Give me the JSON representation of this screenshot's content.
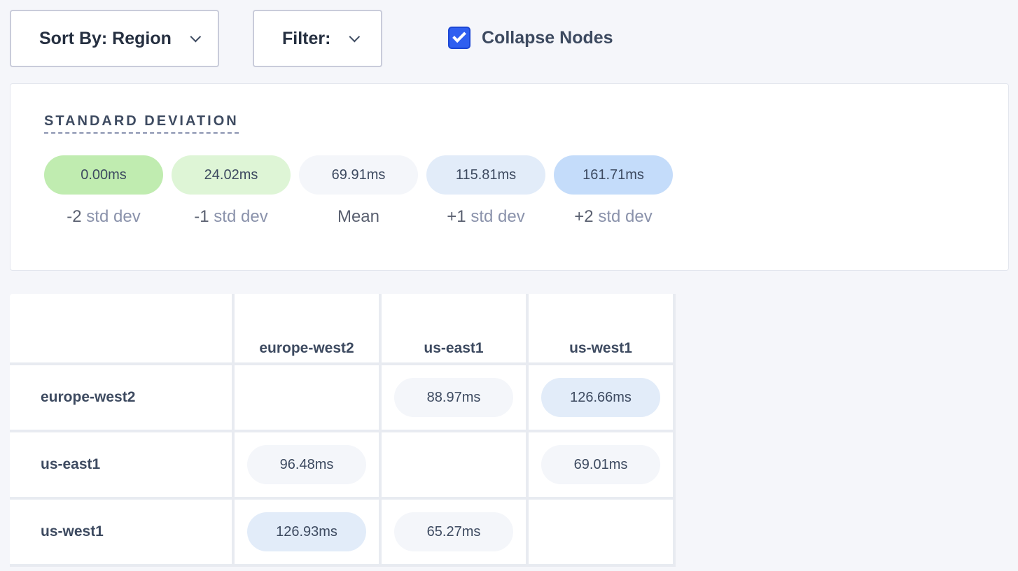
{
  "toolbar": {
    "sort_label": "Sort By: Region",
    "filter_label": "Filter:",
    "collapse_label": "Collapse Nodes",
    "collapse_checked": true
  },
  "legend": {
    "title": "STANDARD DEVIATION",
    "items": [
      {
        "value": "0.00ms",
        "sign": "-2",
        "label": " std dev",
        "color": "#c0ecb0"
      },
      {
        "value": "24.02ms",
        "sign": "-1",
        "label": " std dev",
        "color": "#def5d6"
      },
      {
        "value": "69.91ms",
        "sign": "Mean",
        "label": "",
        "color": "#f4f6fa"
      },
      {
        "value": "115.81ms",
        "sign": "+1",
        "label": " std dev",
        "color": "#e2ecf9"
      },
      {
        "value": "161.71ms",
        "sign": "+2",
        "label": " std dev",
        "color": "#c4dcfa"
      }
    ]
  },
  "matrix": {
    "columns": [
      "europe-west2",
      "us-east1",
      "us-west1"
    ],
    "rows": [
      {
        "name": "europe-west2",
        "cells": [
          null,
          {
            "v": "88.97ms",
            "c": "#f4f6fa"
          },
          {
            "v": "126.66ms",
            "c": "#e2ecf9"
          }
        ]
      },
      {
        "name": "us-east1",
        "cells": [
          {
            "v": "96.48ms",
            "c": "#f4f6fa"
          },
          null,
          {
            "v": "69.01ms",
            "c": "#f4f6fa"
          }
        ]
      },
      {
        "name": "us-west1",
        "cells": [
          {
            "v": "126.93ms",
            "c": "#e2ecf9"
          },
          {
            "v": "65.27ms",
            "c": "#f4f6fa"
          },
          null
        ]
      }
    ]
  }
}
